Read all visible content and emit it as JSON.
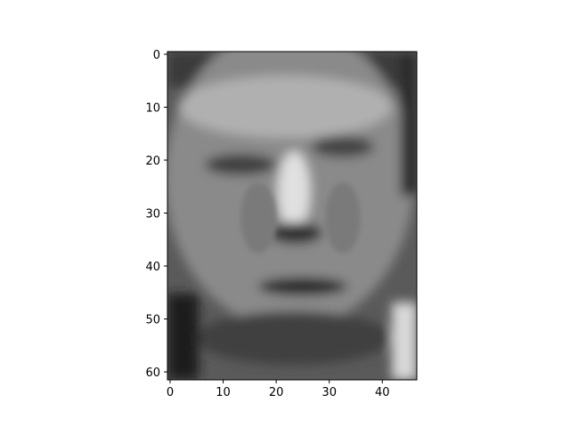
{
  "chart_data": {
    "type": "image",
    "xlim": [
      -0.5,
      46.5
    ],
    "ylim": [
      61.5,
      -0.5
    ],
    "xticks": [
      0,
      10,
      20,
      30,
      40
    ],
    "yticks": [
      0,
      10,
      20,
      30,
      40,
      50,
      60
    ]
  }
}
